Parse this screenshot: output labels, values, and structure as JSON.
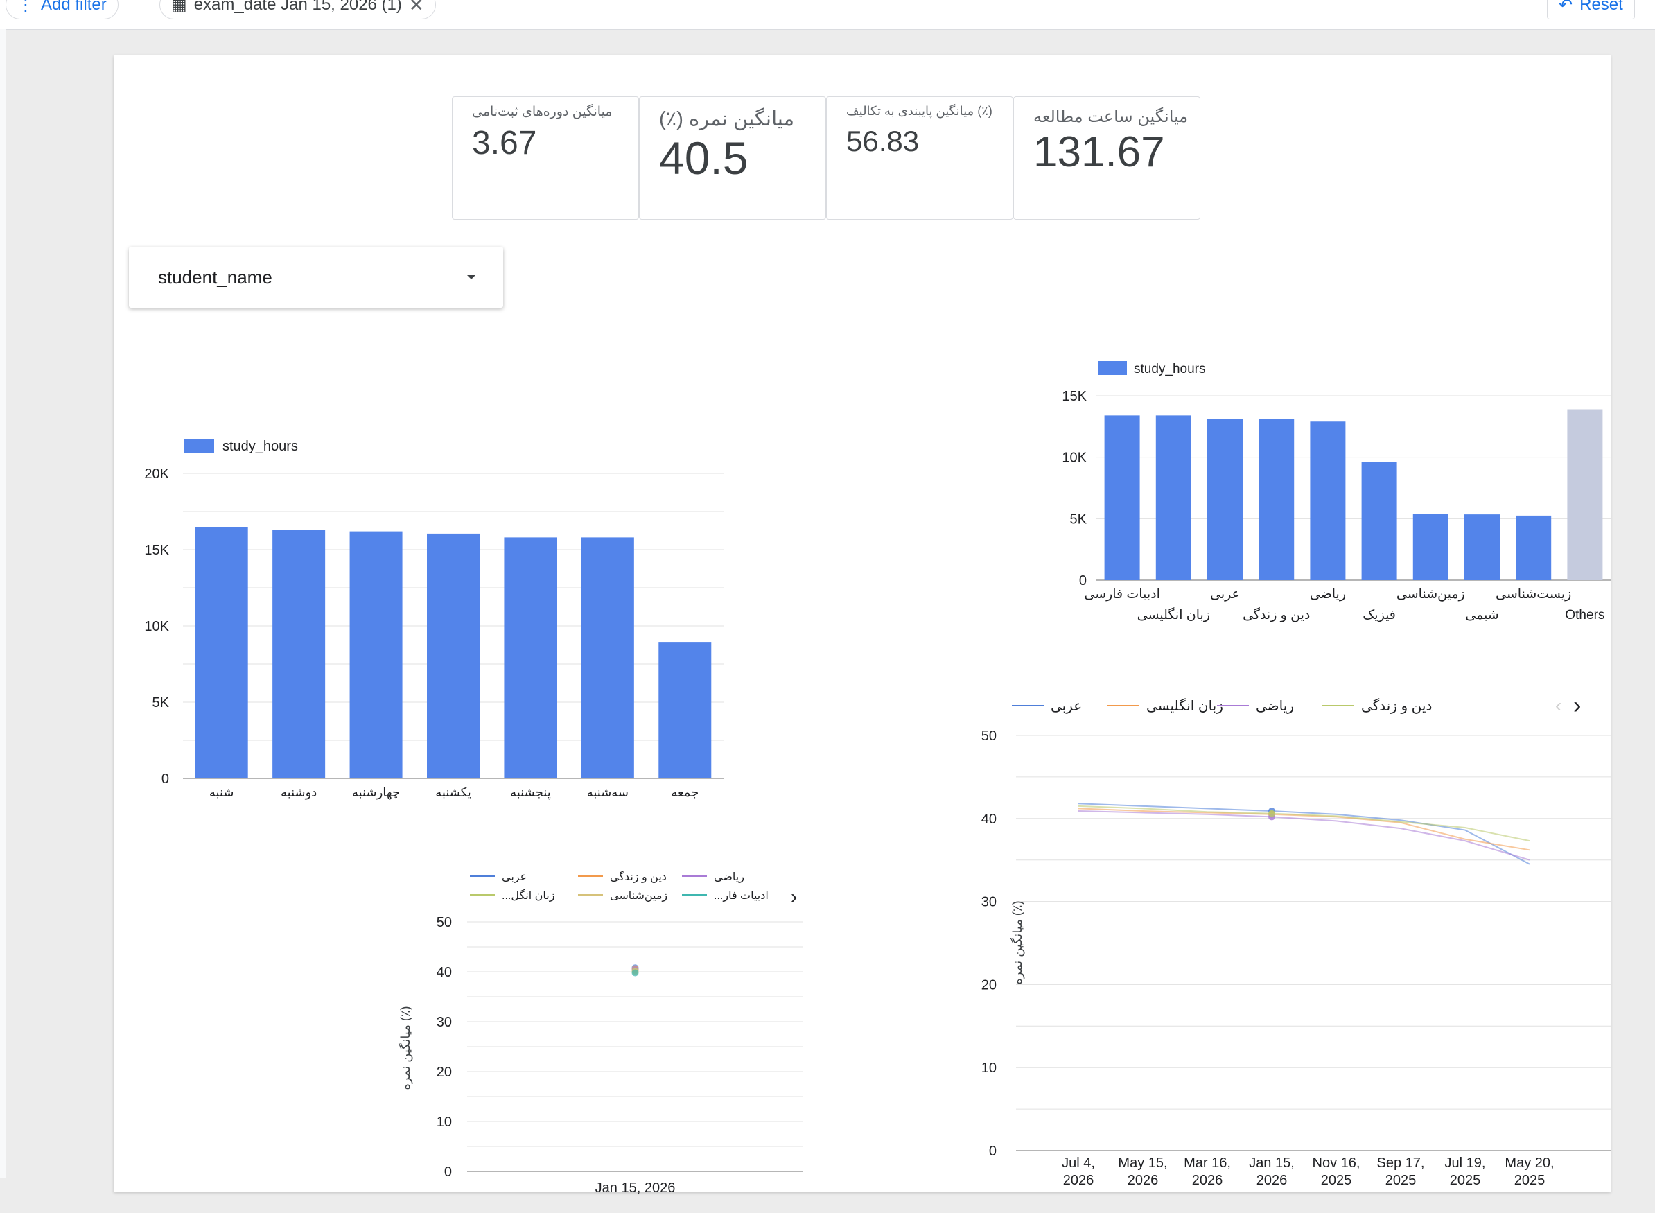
{
  "topbar": {
    "add_filter": "Add filter",
    "filter_chip": "exam_date Jan 15, 2026 (1)",
    "reset": "Reset"
  },
  "kpis": [
    {
      "label": "میانگین دوره‌های ثبت‌نامی",
      "value": "3.67"
    },
    {
      "label": "میانگین نمره (٪)",
      "value": "40.5"
    },
    {
      "label": "(٪) میانگین پایبندی به تکالیف",
      "value": "56.83"
    },
    {
      "label": "میانگین ساعت مطالعه",
      "value": "131.67"
    }
  ],
  "dropdown": {
    "label": "student_name"
  },
  "colors": {
    "bar": "#5384ea",
    "others": "#c5cbde",
    "grid": "#e0e0e0",
    "axis": "#9e9e9e",
    "series": [
      "#4f7fd9",
      "#f29a4c",
      "#a97bd6",
      "#b9c96b",
      "#d6c27a",
      "#3fb7b0"
    ]
  },
  "chart_data": [
    {
      "id": "weekday",
      "type": "bar",
      "legend": "study_hours",
      "categories": [
        "شنبه",
        "دوشنبه",
        "چهارشنبه",
        "یکشنبه",
        "پنجشنبه",
        "سه‌شنبه",
        "جمعه"
      ],
      "values": [
        16500,
        16300,
        16200,
        16050,
        15800,
        15800,
        8950
      ],
      "yticks": [
        "0",
        "5K",
        "10K",
        "15K",
        "20K"
      ],
      "ylim": [
        0,
        20000
      ]
    },
    {
      "id": "subject",
      "type": "bar",
      "legend": "study_hours",
      "categories": [
        "ادبیات فارسی",
        "زبان انگلیسی",
        "عربی",
        "دین و زندگی",
        "ریاضی",
        "فیزیک",
        "زمین‌شناسی",
        "شیمی",
        "زیست‌شناسی",
        "Others"
      ],
      "values": [
        13400,
        13400,
        13100,
        13100,
        12900,
        9600,
        5400,
        5350,
        5250,
        13900
      ],
      "yticks": [
        "0",
        "5K",
        "10K",
        "15K"
      ],
      "ylim": [
        0,
        15000
      ]
    },
    {
      "id": "scatter-small",
      "type": "scatter",
      "ylabel": "میانگین نمره (٪)",
      "legend": [
        "عربی",
        "دین و زندگی",
        "ریاضی",
        "...زبان انگل",
        "زمین‌شناسی",
        "...ادبیات فار"
      ],
      "x": [
        "Jan 15, 2026"
      ],
      "points": [
        40.8,
        40.6,
        40.4,
        40.2,
        40.0,
        39.8
      ],
      "yticks": [
        "0",
        "10",
        "20",
        "30",
        "40",
        "50"
      ],
      "ylim": [
        0,
        50
      ]
    },
    {
      "id": "line-big",
      "type": "line",
      "ylabel": "میانگین نمره (٪)",
      "legend": [
        "عربی",
        "زبان انگلیسی",
        "ریاضی",
        "دین و زندگی"
      ],
      "x": [
        "Jul 4, 2026",
        "May 15, 2026",
        "Mar 16, 2026",
        "Jan 15, 2026",
        "Nov 16, 2025",
        "Sep 17, 2025",
        "Jul 19, 2025",
        "May 20, 2025"
      ],
      "series": [
        {
          "name": "عربی",
          "values": [
            41.8,
            41.5,
            41.2,
            40.9,
            40.5,
            39.8,
            38.6,
            34.5
          ]
        },
        {
          "name": "زبان انگلیسی",
          "values": [
            41.2,
            40.9,
            40.7,
            40.5,
            40.2,
            39.5,
            37.5,
            36.2
          ]
        },
        {
          "name": "ریاضی",
          "values": [
            40.9,
            40.7,
            40.5,
            40.2,
            39.7,
            38.8,
            37.3,
            35.0
          ]
        },
        {
          "name": "دین و زندگی",
          "values": [
            41.5,
            41.2,
            40.8,
            40.6,
            40.3,
            39.6,
            38.9,
            37.3
          ]
        }
      ],
      "yticks": [
        "0",
        "10",
        "20",
        "30",
        "40",
        "50"
      ],
      "ylim": [
        0,
        50
      ]
    }
  ]
}
